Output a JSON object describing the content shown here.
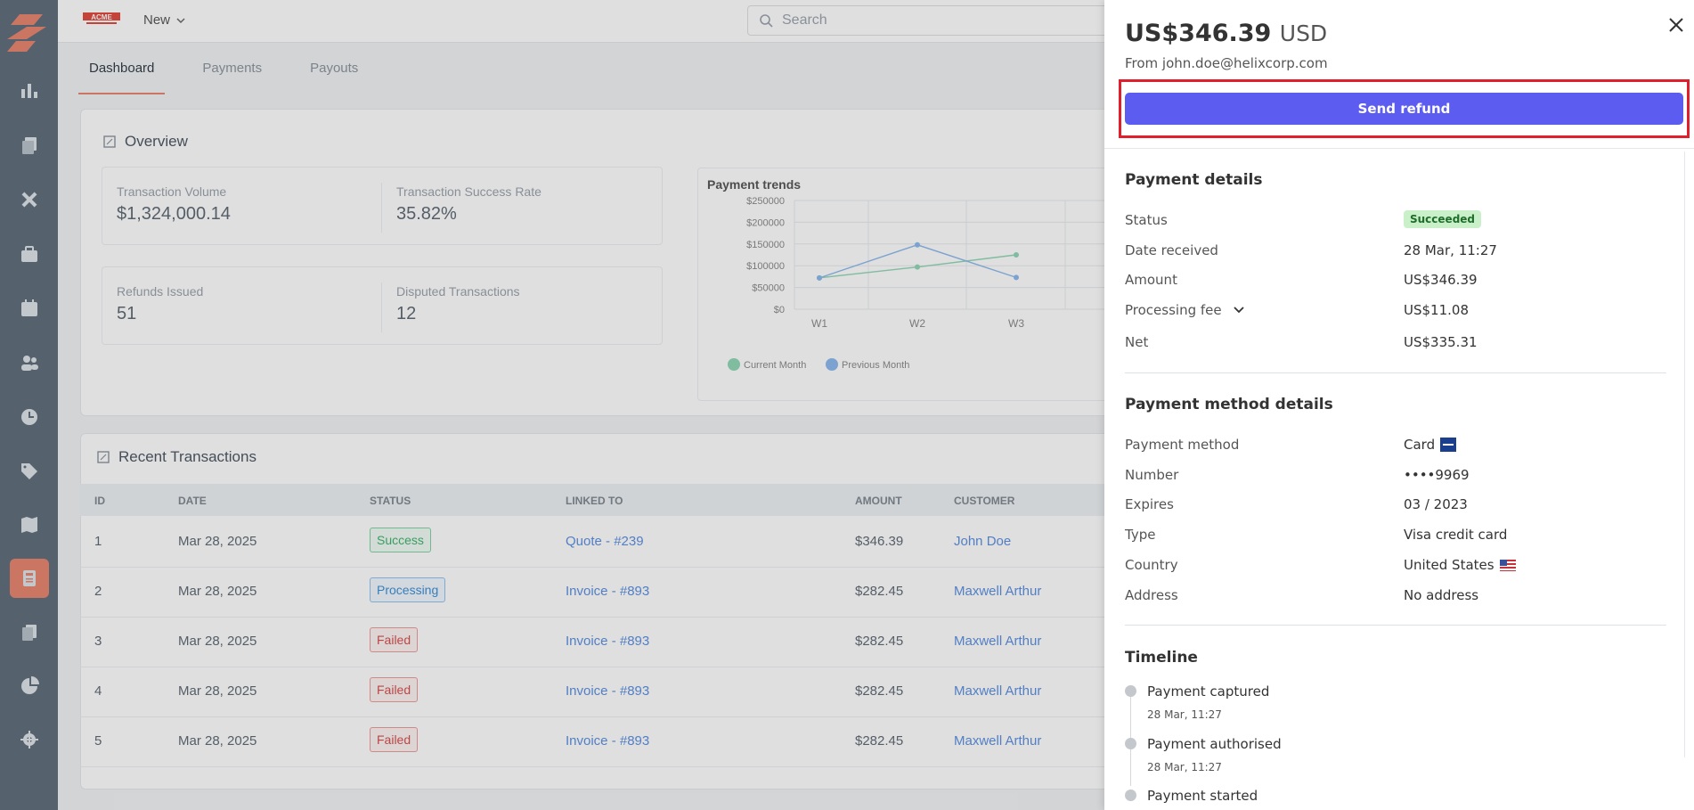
{
  "colors": {
    "accent": "#e8836e",
    "primary_button": "#5c5cf0",
    "highlight": "#e01e2c",
    "sidebar": "#5f6c7b"
  },
  "sidebar": {
    "icons": [
      "logo-icon",
      "chart-bar-icon",
      "documents-icon",
      "tools-icon",
      "briefcase-icon",
      "calendar-icon",
      "users-icon",
      "clock-icon",
      "tag-icon",
      "map-icon",
      "calculator-icon",
      "files-icon",
      "pie-chart-icon",
      "gear-icon"
    ]
  },
  "topbar": {
    "brand": "ACME",
    "new_label": "New",
    "search_placeholder": "Search"
  },
  "tabs": [
    {
      "label": "Dashboard",
      "active": true
    },
    {
      "label": "Payments",
      "active": false
    },
    {
      "label": "Payouts",
      "active": false
    }
  ],
  "overview": {
    "title": "Overview",
    "stats": [
      {
        "label": "Transaction Volume",
        "value": "$1,324,000.14"
      },
      {
        "label": "Transaction Success Rate",
        "value": "35.82%"
      },
      {
        "label": "Refunds Issued",
        "value": "51"
      },
      {
        "label": "Disputed Transactions",
        "value": "12"
      }
    ]
  },
  "chart_data": {
    "type": "line",
    "title": "Payment trends",
    "categories": [
      "W1",
      "W2",
      "W3"
    ],
    "y_ticks": [
      "$250000",
      "$200000",
      "$150000",
      "$100000",
      "$50000",
      "$0"
    ],
    "ylim": [
      0,
      250000
    ],
    "series": [
      {
        "name": "Current Month",
        "values": [
          72000,
          97000,
          125000
        ],
        "color": "#8fd6b5"
      },
      {
        "name": "Previous Month",
        "values": [
          72000,
          148000,
          73000
        ],
        "color": "#8ab8ee"
      }
    ],
    "legend_position": "bottom-left",
    "grid": true
  },
  "transactions": {
    "title": "Recent Transactions",
    "columns": [
      "ID",
      "DATE",
      "STATUS",
      "LINKED TO",
      "AMOUNT",
      "CUSTOMER"
    ],
    "rows": [
      {
        "id": "1",
        "date": "Mar 28, 2025",
        "status": "Success",
        "status_kind": "success",
        "linked": "Quote - #239",
        "amount": "$346.39",
        "customer": "John Doe"
      },
      {
        "id": "2",
        "date": "Mar 28, 2025",
        "status": "Processing",
        "status_kind": "processing",
        "linked": "Invoice - #893",
        "amount": "$282.45",
        "customer": "Maxwell Arthur"
      },
      {
        "id": "3",
        "date": "Mar 28, 2025",
        "status": "Failed",
        "status_kind": "failed",
        "linked": "Invoice - #893",
        "amount": "$282.45",
        "customer": "Maxwell Arthur"
      },
      {
        "id": "4",
        "date": "Mar 28, 2025",
        "status": "Failed",
        "status_kind": "failed",
        "linked": "Invoice - #893",
        "amount": "$282.45",
        "customer": "Maxwell Arthur"
      },
      {
        "id": "5",
        "date": "Mar 28, 2025",
        "status": "Failed",
        "status_kind": "failed",
        "linked": "Invoice - #893",
        "amount": "$282.45",
        "customer": "Maxwell Arthur"
      }
    ]
  },
  "panel": {
    "amount": "US$346.39",
    "currency": "USD",
    "from": "From john.doe@helixcorp.com",
    "refund_button": "Send refund",
    "payment_details": {
      "title": "Payment details",
      "status_label": "Status",
      "status_value": "Succeeded",
      "date_label": "Date received",
      "date_value": "28 Mar, 11:27",
      "amount_label": "Amount",
      "amount_value": "US$346.39",
      "fee_label": "Processing fee",
      "fee_value": "US$11.08",
      "net_label": "Net",
      "net_value": "US$335.31"
    },
    "method_details": {
      "title": "Payment method details",
      "method_label": "Payment method",
      "method_value": "Card",
      "number_label": "Number",
      "number_value": "••••9969",
      "expires_label": "Expires",
      "expires_value": "03 / 2023",
      "type_label": "Type",
      "type_value": "Visa credit card",
      "country_label": "Country",
      "country_value": "United States",
      "address_label": "Address",
      "address_value": "No address"
    },
    "timeline": {
      "title": "Timeline",
      "events": [
        {
          "title": "Payment captured",
          "time": "28 Mar, 11:27"
        },
        {
          "title": "Payment authorised",
          "time": "28 Mar, 11:27"
        },
        {
          "title": "Payment started",
          "time": ""
        }
      ]
    }
  }
}
